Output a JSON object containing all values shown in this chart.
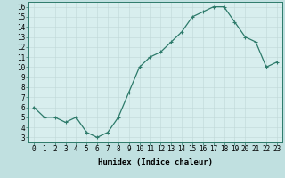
{
  "x": [
    0,
    1,
    2,
    3,
    4,
    5,
    6,
    7,
    8,
    9,
    10,
    11,
    12,
    13,
    14,
    15,
    16,
    17,
    18,
    19,
    20,
    21,
    22,
    23
  ],
  "y": [
    6,
    5,
    5,
    4.5,
    5,
    3.5,
    3,
    3.5,
    5,
    7.5,
    10,
    11,
    11.5,
    12.5,
    13.5,
    15,
    15.5,
    16,
    16,
    14.5,
    13,
    12.5,
    10,
    10.5
  ],
  "line_color": "#2d7a6a",
  "marker": "+",
  "marker_size": 3,
  "marker_lw": 0.8,
  "grid_color": "#c0d8d8",
  "xlabel": "Humidex (Indice chaleur)",
  "xlim": [
    -0.5,
    23.5
  ],
  "ylim": [
    2.5,
    16.5
  ],
  "yticks": [
    3,
    4,
    5,
    6,
    7,
    8,
    9,
    10,
    11,
    12,
    13,
    14,
    15,
    16
  ],
  "xticks": [
    0,
    1,
    2,
    3,
    4,
    5,
    6,
    7,
    8,
    9,
    10,
    11,
    12,
    13,
    14,
    15,
    16,
    17,
    18,
    19,
    20,
    21,
    22,
    23
  ],
  "xlabel_fontsize": 6.5,
  "tick_fontsize": 5.5,
  "line_width": 0.9,
  "ax_bg_color": "#d8eeee",
  "fig_bg_color": "#c0e0e0",
  "spine_color": "#2d7a6a"
}
